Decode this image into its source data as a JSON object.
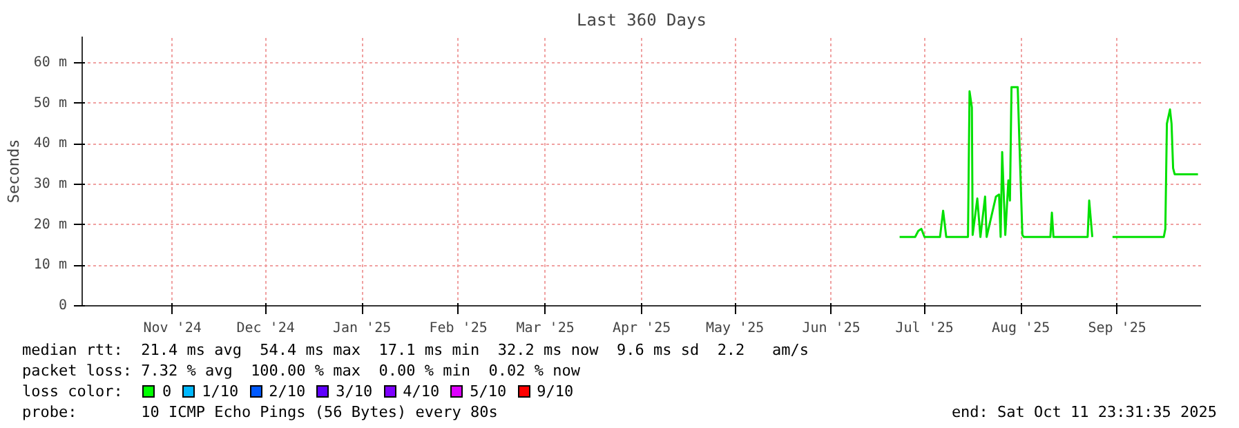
{
  "chart_data": {
    "type": "line",
    "title": "Last 360 Days",
    "ylabel": "Seconds",
    "x": [
      "2025-07-07",
      "2025-07-12",
      "2025-07-13",
      "2025-07-14",
      "2025-07-15",
      "2025-07-20",
      "2025-07-21",
      "2025-07-22",
      "2025-07-29",
      "2025-07-29T12:00",
      "2025-07-30T06:00",
      "2025-07-30T12:00",
      "2025-08-01",
      "2025-08-02",
      "2025-08-03T12:00",
      "2025-08-04",
      "2025-08-07",
      "2025-08-08",
      "2025-08-08T12:00",
      "2025-08-09",
      "2025-08-10",
      "2025-08-11",
      "2025-08-11T12:00",
      "2025-08-12",
      "2025-08-14",
      "2025-08-14T12:00",
      "2025-08-15T12:00",
      "2025-08-16",
      "2025-08-24T12:00",
      "2025-08-25",
      "2025-08-25T12:00",
      "2025-09-05T12:00",
      "2025-09-06",
      "2025-09-07",
      "2025-09-10",
      "2025-09-13T12:00",
      "2025-09-30",
      "2025-09-30T12:00",
      "2025-10-01",
      "2025-10-02",
      "2025-10-02T12:00",
      "2025-10-03",
      "2025-10-03T12:00",
      "2025-10-11"
    ],
    "series": [
      {
        "color": "#00e000",
        "values": [
          17,
          17,
          18.5,
          19,
          17,
          17,
          23.5,
          17,
          17,
          53,
          49,
          17.5,
          26.5,
          17,
          27,
          17,
          27,
          27.5,
          17,
          38,
          17.5,
          31,
          26,
          54,
          54,
          41.5,
          17.5,
          17,
          17,
          23,
          17,
          17,
          26,
          17,
          null,
          17,
          17,
          19,
          45,
          48.5,
          45,
          34,
          32.5,
          32.5
        ]
      }
    ],
    "xlim": [
      "2024-10-16T23:31",
      "2025-10-11T23:31"
    ],
    "xticks": [
      {
        "value": "2024-11-15",
        "label": "Nov '24"
      },
      {
        "value": "2024-12-15",
        "label": "Dec '24"
      },
      {
        "value": "2025-01-15",
        "label": "Jan '25"
      },
      {
        "value": "2025-02-15",
        "label": "Feb '25"
      },
      {
        "value": "2025-03-15",
        "label": "Mar '25"
      },
      {
        "value": "2025-04-15",
        "label": "Apr '25"
      },
      {
        "value": "2025-05-15",
        "label": "May '25"
      },
      {
        "value": "2025-06-15",
        "label": "Jun '25"
      },
      {
        "value": "2025-07-15",
        "label": "Jul '25"
      },
      {
        "value": "2025-08-15",
        "label": "Aug '25"
      },
      {
        "value": "2025-09-15",
        "label": "Sep '25"
      }
    ],
    "ylim": [
      0,
      66.5
    ],
    "yticks": [
      0,
      {
        "value": 10,
        "label": "10 m"
      },
      {
        "value": 20,
        "label": "20 m"
      },
      {
        "value": 30,
        "label": "30 m"
      },
      {
        "value": 40,
        "label": "40 m"
      },
      {
        "value": 50,
        "label": "50 m"
      },
      {
        "value": 60,
        "label": "60 m"
      }
    ],
    "grid": true,
    "line_style": "solid",
    "annotations": [
      "median rtt:  21.4 ms avg  54.4 ms max  17.1 ms min  32.2 ms now  9.6 ms sd  2.2   am/s",
      "packet loss: 7.32 % avg  100.00 % max  0.00 % min  0.02 % now",
      "loss color:",
      "0",
      "1/10",
      "2/10",
      "3/10",
      "4/10",
      "5/10",
      "9/10",
      "probe:       10 ICMP Echo Pings (56 Bytes) every 80s",
      "end: Sat Oct 11 23:31:35 2025"
    ]
  }
}
